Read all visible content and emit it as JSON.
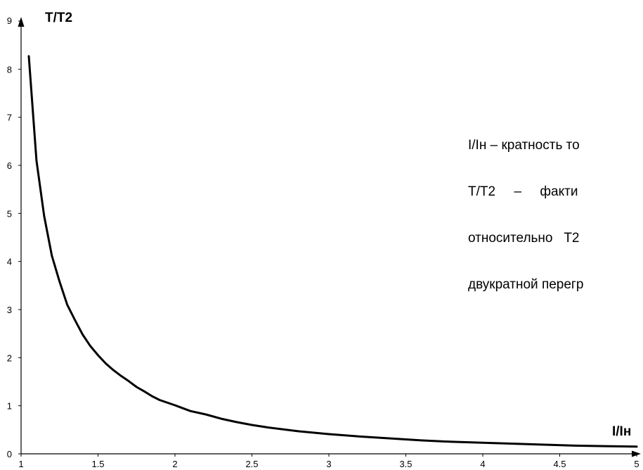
{
  "chart_data": {
    "type": "line",
    "ylabel": "T/T2",
    "xlabel": "I/Iн",
    "xlim": [
      1,
      5
    ],
    "ylim": [
      0,
      9
    ],
    "x_ticks": [
      "1",
      "1.5",
      "2",
      "2.5",
      "3",
      "3.5",
      "4",
      "4.5",
      "5"
    ],
    "y_ticks": [
      "0",
      "1",
      "2",
      "3",
      "4",
      "5",
      "6",
      "7",
      "8",
      "9"
    ],
    "grid": false,
    "series": [
      {
        "x": [
          1.05,
          1.1,
          1.15,
          1.2,
          1.25,
          1.3,
          1.35,
          1.4,
          1.45,
          1.5,
          1.55,
          1.6,
          1.65,
          1.7,
          1.75,
          1.8,
          1.85,
          1.9,
          2.0,
          2.1,
          2.2,
          2.3,
          2.4,
          2.5,
          2.6,
          2.8,
          3.0,
          3.2,
          3.4,
          3.6,
          3.8,
          4.0,
          4.2,
          4.4,
          4.6,
          4.8,
          5.0
        ],
        "y": [
          8.27,
          6.1,
          4.95,
          4.12,
          3.58,
          3.1,
          2.78,
          2.48,
          2.24,
          2.05,
          1.88,
          1.74,
          1.62,
          1.51,
          1.39,
          1.3,
          1.2,
          1.12,
          1.01,
          0.89,
          0.82,
          0.73,
          0.66,
          0.6,
          0.55,
          0.47,
          0.41,
          0.36,
          0.32,
          0.28,
          0.25,
          0.23,
          0.21,
          0.19,
          0.17,
          0.16,
          0.15
        ]
      }
    ],
    "annotation_lines": [
      "I/Iн – кратность то",
      "T/T2     –     факти",
      "относительно   Т2",
      "двукратной перегр"
    ]
  }
}
